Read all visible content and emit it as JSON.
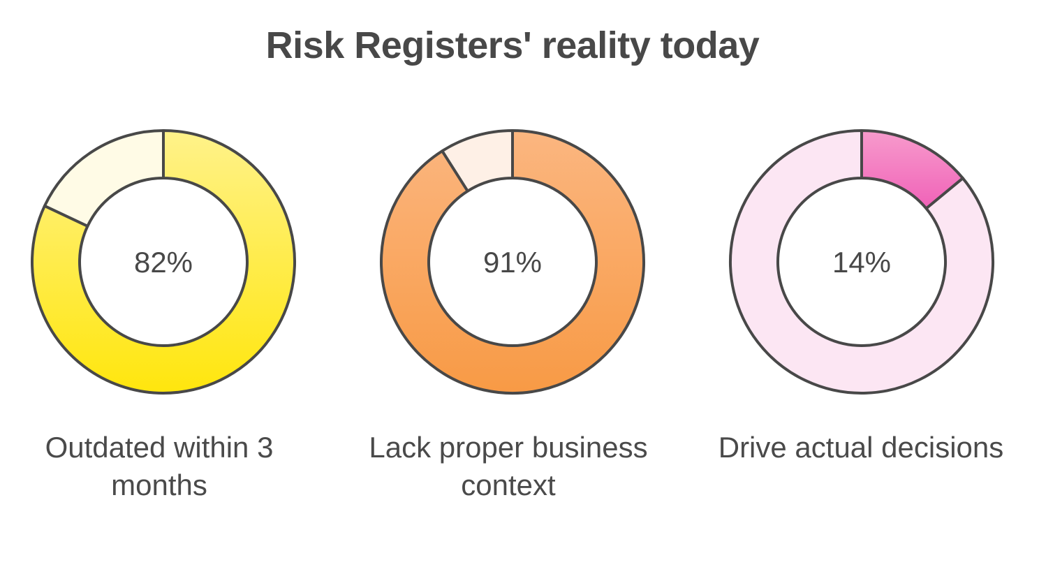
{
  "chart_data": {
    "type": "pie",
    "title": "Risk Registers' reality today",
    "items": [
      {
        "label": "Outdated within 3 months",
        "value": 82,
        "value_label": "82%",
        "color_light": "#fff28a",
        "color_dark": "#ffe60d",
        "remainder_color": "#fffbe6"
      },
      {
        "label": "Lack proper business context",
        "value": 91,
        "value_label": "91%",
        "color_light": "#fbb680",
        "color_dark": "#f89a45",
        "remainder_color": "#fef0e6"
      },
      {
        "label": "Drive actual decisions",
        "value": 14,
        "value_label": "14%",
        "color_light": "#f79bcc",
        "color_dark": "#f062b8",
        "remainder_color": "#fce6f3"
      }
    ],
    "stroke_color": "#484848"
  }
}
